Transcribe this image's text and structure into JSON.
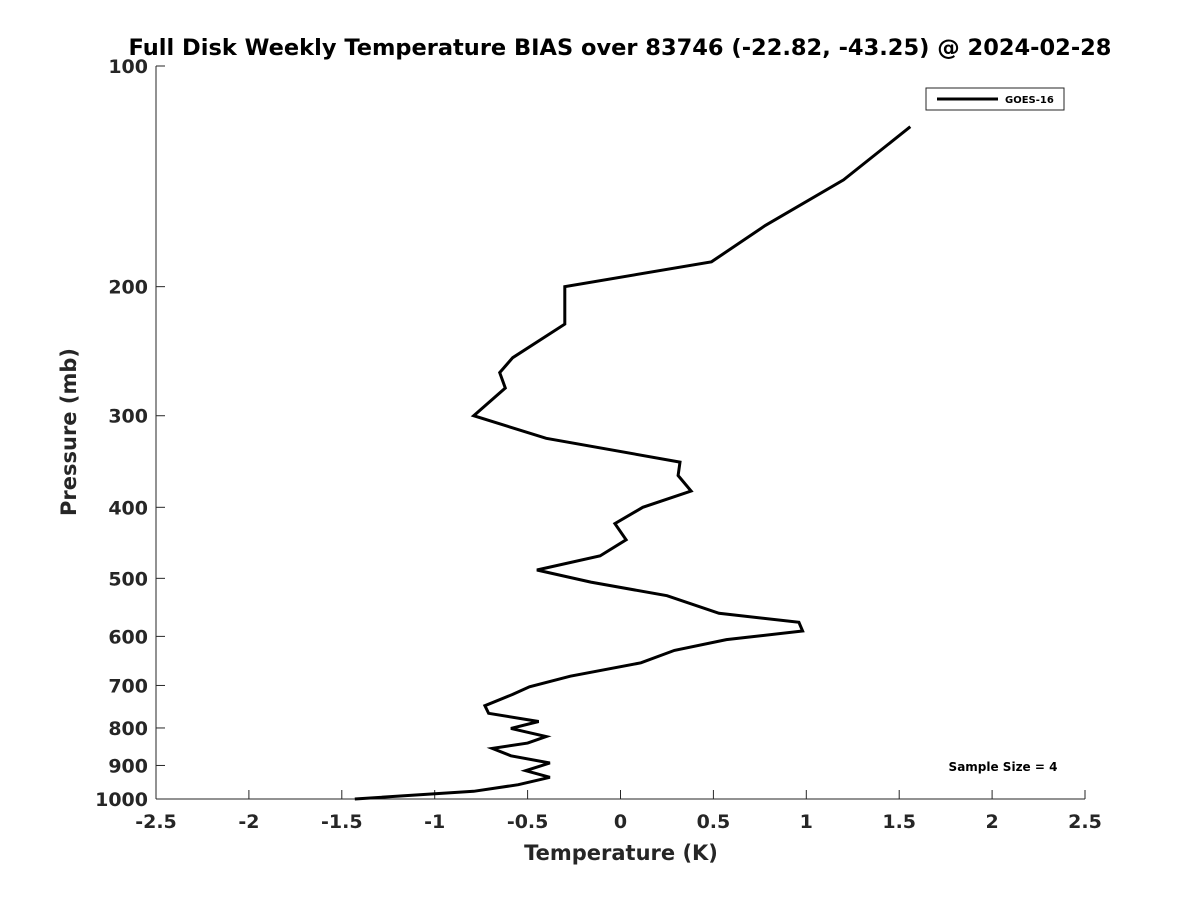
{
  "chart_data": {
    "type": "line",
    "title": "Full Disk Weekly Temperature BIAS over 83746 (-22.82, -43.25) @ 2024-02-28",
    "xlabel": "Temperature (K)",
    "ylabel": "Pressure (mb)",
    "xlim": [
      -2.5,
      2.5
    ],
    "ylim": [
      100,
      1000
    ],
    "y_scale": "log",
    "y_reversed": true,
    "grid": false,
    "x_ticks": [
      -2.5,
      -2,
      -1.5,
      -1,
      -0.5,
      0,
      0.5,
      1,
      1.5,
      2,
      2.5
    ],
    "x_tick_labels": [
      "-2.5",
      "-2",
      "-1.5",
      "-1",
      "-0.5",
      "0",
      "0.5",
      "1",
      "1.5",
      "2",
      "2.5"
    ],
    "y_ticks": [
      100,
      200,
      300,
      400,
      500,
      600,
      700,
      800,
      900,
      1000
    ],
    "y_tick_labels": [
      "100",
      "200",
      "300",
      "400",
      "500",
      "600",
      "700",
      "800",
      "900",
      "1000"
    ],
    "legend_position": "top-right",
    "annotation": "Sample Size = 4",
    "series": [
      {
        "name": "GOES-16",
        "color": "#000000",
        "points": [
          {
            "x": 1.56,
            "p": 121
          },
          {
            "x": 1.2,
            "p": 143
          },
          {
            "x": 0.78,
            "p": 165
          },
          {
            "x": 0.49,
            "p": 185
          },
          {
            "x": -0.3,
            "p": 200
          },
          {
            "x": -0.3,
            "p": 225
          },
          {
            "x": -0.58,
            "p": 250
          },
          {
            "x": -0.65,
            "p": 262
          },
          {
            "x": -0.62,
            "p": 275
          },
          {
            "x": -0.79,
            "p": 300
          },
          {
            "x": -0.4,
            "p": 322
          },
          {
            "x": 0.32,
            "p": 347
          },
          {
            "x": 0.31,
            "p": 362
          },
          {
            "x": 0.38,
            "p": 380
          },
          {
            "x": 0.12,
            "p": 400
          },
          {
            "x": -0.03,
            "p": 421
          },
          {
            "x": 0.03,
            "p": 443
          },
          {
            "x": -0.11,
            "p": 466
          },
          {
            "x": -0.45,
            "p": 487
          },
          {
            "x": -0.16,
            "p": 506
          },
          {
            "x": 0.25,
            "p": 528
          },
          {
            "x": 0.53,
            "p": 558
          },
          {
            "x": 0.96,
            "p": 574
          },
          {
            "x": 0.98,
            "p": 590
          },
          {
            "x": 0.57,
            "p": 606
          },
          {
            "x": 0.29,
            "p": 627
          },
          {
            "x": 0.11,
            "p": 652
          },
          {
            "x": -0.27,
            "p": 680
          },
          {
            "x": -0.49,
            "p": 703
          },
          {
            "x": -0.58,
            "p": 720
          },
          {
            "x": -0.73,
            "p": 746
          },
          {
            "x": -0.71,
            "p": 764
          },
          {
            "x": -0.44,
            "p": 784
          },
          {
            "x": -0.59,
            "p": 801
          },
          {
            "x": -0.4,
            "p": 822
          },
          {
            "x": -0.5,
            "p": 839
          },
          {
            "x": -0.69,
            "p": 853
          },
          {
            "x": -0.59,
            "p": 873
          },
          {
            "x": -0.38,
            "p": 893
          },
          {
            "x": -0.51,
            "p": 915
          },
          {
            "x": -0.38,
            "p": 934
          },
          {
            "x": -0.55,
            "p": 956
          },
          {
            "x": -0.79,
            "p": 976
          },
          {
            "x": -1.43,
            "p": 1000
          }
        ]
      }
    ]
  }
}
